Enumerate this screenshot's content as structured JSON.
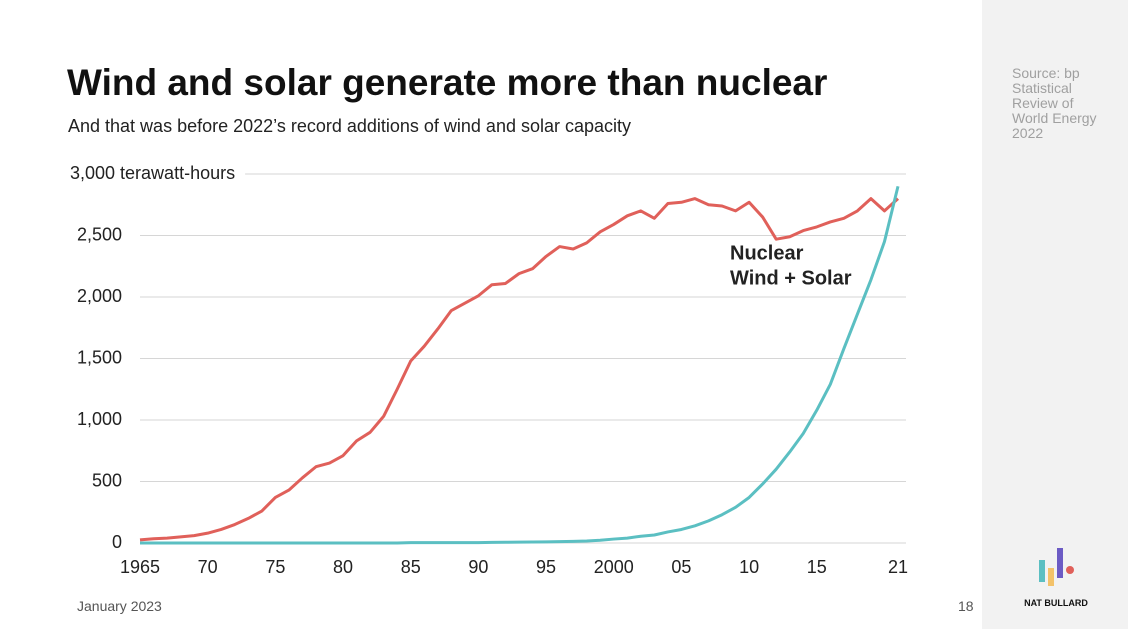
{
  "source": "Source: bp Statistical Review of World Energy 2022",
  "footer": {
    "date": "January 2023",
    "page": "18"
  },
  "brand": "NAT BULLARD",
  "chart_data": {
    "type": "line",
    "title": "Wind and solar generate more than nuclear",
    "subtitle": "And that was before 2022’s record additions of wind and solar capacity",
    "x": [
      1965,
      1966,
      1967,
      1968,
      1969,
      1970,
      1971,
      1972,
      1973,
      1974,
      1975,
      1976,
      1977,
      1978,
      1979,
      1980,
      1981,
      1982,
      1983,
      1984,
      1985,
      1986,
      1987,
      1988,
      1989,
      1990,
      1991,
      1992,
      1993,
      1994,
      1995,
      1996,
      1997,
      1998,
      1999,
      2000,
      2001,
      2002,
      2003,
      2004,
      2005,
      2006,
      2007,
      2008,
      2009,
      2010,
      2011,
      2012,
      2013,
      2014,
      2015,
      2016,
      2017,
      2018,
      2019,
      2020,
      2021
    ],
    "series": [
      {
        "name": "Nuclear",
        "color": "#e0605a",
        "values": [
          25,
          35,
          40,
          50,
          60,
          80,
          110,
          150,
          200,
          260,
          370,
          430,
          530,
          620,
          650,
          710,
          830,
          900,
          1030,
          1250,
          1480,
          1600,
          1740,
          1890,
          1950,
          2010,
          2100,
          2110,
          2190,
          2230,
          2330,
          2410,
          2390,
          2440,
          2530,
          2590,
          2660,
          2700,
          2640,
          2760,
          2770,
          2800,
          2750,
          2740,
          2700,
          2770,
          2650,
          2470,
          2490,
          2540,
          2570,
          2610,
          2640,
          2700,
          2800,
          2700,
          2800
        ]
      },
      {
        "name": "Wind + Solar",
        "color": "#5bbfc2",
        "values": [
          0,
          0,
          0,
          0,
          0,
          0,
          0,
          0,
          0,
          0,
          0,
          0,
          0,
          0,
          0,
          0,
          0,
          0,
          0,
          0,
          3,
          3,
          3,
          3,
          3,
          3,
          5,
          6,
          7,
          8,
          9,
          11,
          13,
          16,
          22,
          32,
          40,
          55,
          65,
          90,
          110,
          140,
          180,
          230,
          290,
          370,
          480,
          600,
          740,
          890,
          1080,
          1290,
          1580,
          1860,
          2140,
          2450,
          2900
        ]
      }
    ],
    "xlim": [
      1965,
      2021
    ],
    "xticks": [
      1965,
      {
        "value": 1970,
        "label": "70"
      },
      {
        "value": 1975,
        "label": "75"
      },
      {
        "value": 1980,
        "label": "80"
      },
      {
        "value": 1985,
        "label": "85"
      },
      {
        "value": 1990,
        "label": "90"
      },
      {
        "value": 1995,
        "label": "95"
      },
      2000,
      {
        "value": 2005,
        "label": "05"
      },
      {
        "value": 2010,
        "label": "10"
      },
      {
        "value": 2015,
        "label": "15"
      },
      {
        "value": 2021,
        "label": "21"
      }
    ],
    "ylim": [
      0,
      3000
    ],
    "yticks": [
      0,
      500,
      {
        "value": 1000,
        "label": "1,000"
      },
      {
        "value": 1500,
        "label": "1,500"
      },
      {
        "value": 2000,
        "label": "2,000"
      },
      {
        "value": 2500,
        "label": "2,500"
      },
      {
        "value": 3000,
        "label": "3,000 terawatt-hours"
      }
    ],
    "grid": true
  }
}
